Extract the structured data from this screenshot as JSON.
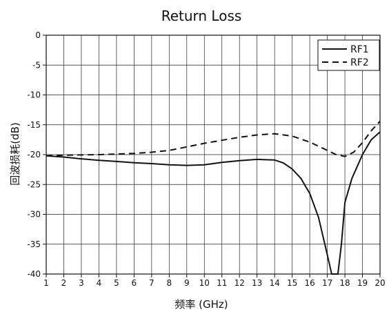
{
  "chart_data": {
    "type": "line",
    "title": "Return Loss",
    "xlabel": "频率 (GHz)",
    "ylabel": "回波损耗(dB)",
    "xlim": [
      1,
      20
    ],
    "ylim": [
      -40,
      0
    ],
    "xticks": [
      1,
      2,
      3,
      4,
      5,
      6,
      7,
      8,
      9,
      10,
      11,
      12,
      13,
      14,
      15,
      16,
      17,
      18,
      19,
      20
    ],
    "yticks": [
      0,
      -5,
      -10,
      -15,
      -20,
      -25,
      -30,
      -35,
      -40
    ],
    "grid": true,
    "legend_position": "top-right",
    "series": [
      {
        "name": "RF1",
        "style": "solid",
        "color": "#111111",
        "points": [
          [
            1,
            -20.2
          ],
          [
            2,
            -20.4
          ],
          [
            3,
            -20.7
          ],
          [
            4,
            -20.95
          ],
          [
            5,
            -21.15
          ],
          [
            6,
            -21.35
          ],
          [
            7,
            -21.5
          ],
          [
            8,
            -21.7
          ],
          [
            9,
            -21.8
          ],
          [
            10,
            -21.7
          ],
          [
            11,
            -21.3
          ],
          [
            12,
            -21.0
          ],
          [
            13,
            -20.8
          ],
          [
            14,
            -20.9
          ],
          [
            14.5,
            -21.4
          ],
          [
            15,
            -22.4
          ],
          [
            15.5,
            -24.0
          ],
          [
            16,
            -26.5
          ],
          [
            16.5,
            -30.5
          ],
          [
            16.9,
            -35.5
          ],
          [
            17.25,
            -40
          ],
          [
            17.6,
            -40
          ],
          [
            17.8,
            -35
          ],
          [
            18,
            -28
          ],
          [
            18.4,
            -24
          ],
          [
            19,
            -20
          ],
          [
            19.5,
            -17.5
          ],
          [
            20,
            -16.2
          ]
        ]
      },
      {
        "name": "RF2",
        "style": "dashed",
        "color": "#111111",
        "points": [
          [
            1,
            -20.2
          ],
          [
            2,
            -20.1
          ],
          [
            3,
            -20.05
          ],
          [
            4,
            -20.0
          ],
          [
            5,
            -19.9
          ],
          [
            6,
            -19.8
          ],
          [
            7,
            -19.6
          ],
          [
            8,
            -19.3
          ],
          [
            9,
            -18.7
          ],
          [
            10,
            -18.1
          ],
          [
            11,
            -17.6
          ],
          [
            12,
            -17.1
          ],
          [
            13,
            -16.7
          ],
          [
            14,
            -16.5
          ],
          [
            15,
            -16.9
          ],
          [
            16,
            -17.9
          ],
          [
            17,
            -19.3
          ],
          [
            17.5,
            -20.0
          ],
          [
            18,
            -20.3
          ],
          [
            18.5,
            -19.6
          ],
          [
            19,
            -18.0
          ],
          [
            19.5,
            -16.0
          ],
          [
            20,
            -14.4
          ]
        ]
      }
    ]
  }
}
